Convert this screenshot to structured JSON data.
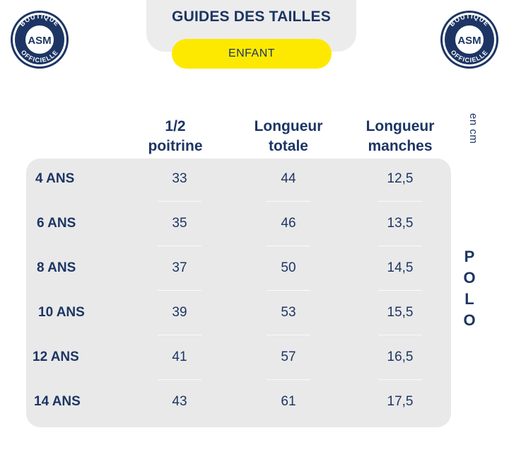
{
  "header": {
    "title": "GUIDES DES TAILLES",
    "subtitle": "ENFANT"
  },
  "logo": {
    "text_top": "BOUTIQUE",
    "text_bottom": "OFFICIELLE",
    "monogram": "ASM"
  },
  "columns": [
    {
      "line1": "1/2",
      "line2": "poitrine"
    },
    {
      "line1": "Longueur",
      "line2": "totale"
    },
    {
      "line1": "Longueur",
      "line2": "manches"
    }
  ],
  "unit": "en cm",
  "product": [
    "P",
    "O",
    "L",
    "O"
  ],
  "rows": [
    {
      "size": "4 ANS",
      "cells": [
        "33",
        "44",
        "12,5"
      ]
    },
    {
      "size": "6 ANS",
      "cells": [
        "35",
        "46",
        "13,5"
      ]
    },
    {
      "size": "8 ANS",
      "cells": [
        "37",
        "50",
        "14,5"
      ]
    },
    {
      "size": "10 ANS",
      "cells": [
        "39",
        "53",
        "15,5"
      ]
    },
    {
      "size": "12 ANS",
      "cells": [
        "41",
        "57",
        "16,5"
      ]
    },
    {
      "size": "14 ANS",
      "cells": [
        "43",
        "61",
        "17,5"
      ]
    }
  ],
  "colors": {
    "navy": "#1c3564",
    "yellow": "#fde900",
    "panel": "#e9e9e9"
  }
}
